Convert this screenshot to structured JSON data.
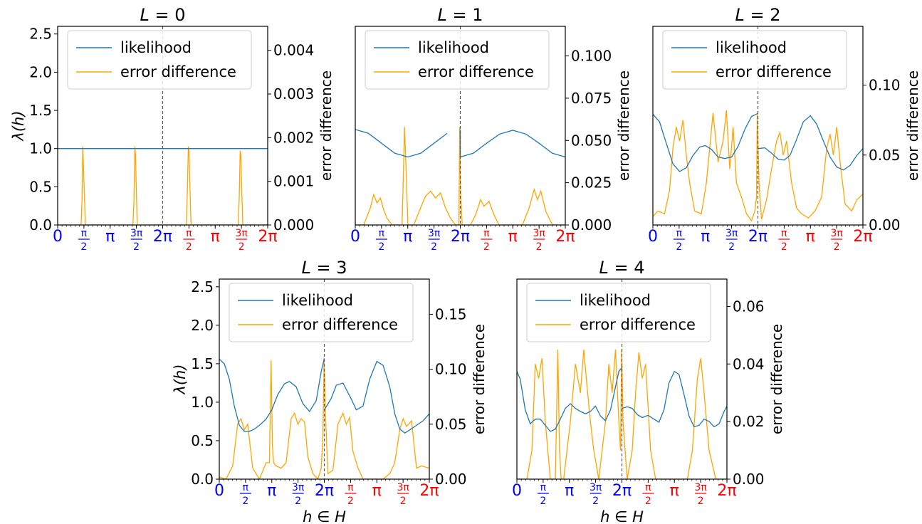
{
  "colors": {
    "likelihood": "#1f77b4",
    "error": "#ffa500",
    "first_half_ticks": "#0000ff",
    "second_half_ticks": "#ff0000",
    "divider": "#555555"
  },
  "x_tick_labels": {
    "zero": "0",
    "half_pi": "π/2",
    "pi": "π",
    "three_half_pi": "3π/2",
    "two_pi": "2π"
  },
  "chart_data": [
    {
      "type": "line",
      "title": "L = 0",
      "ylabel_left": "λ(h)",
      "ylabel_right": "error difference",
      "xlabel": "",
      "ylim_left": [
        0,
        2.6
      ],
      "yticks_left": [
        "0.0",
        "0.5",
        "1.0",
        "1.5",
        "2.0",
        "2.5"
      ],
      "ylim_right": [
        0,
        0.00455
      ],
      "yticks_right": [
        "0.000",
        "0.001",
        "0.002",
        "0.003",
        "0.004"
      ],
      "legend": [
        "likelihood",
        "error difference"
      ],
      "legend_position": "top-left",
      "x_range": [
        0,
        12.566
      ],
      "likelihood": {
        "x": [
          0,
          1.571,
          3.142,
          4.712,
          6.283,
          7.854,
          9.425,
          10.996,
          12.566
        ],
        "y": [
          1.0,
          1.0,
          1.0,
          1.0,
          1.0,
          1.0,
          1.0,
          1.0,
          1.0
        ]
      },
      "error_difference": {
        "x": [
          0,
          1.4,
          1.46,
          1.5,
          1.54,
          1.6,
          1.66,
          1.7,
          4.5,
          4.56,
          4.62,
          4.66,
          4.7,
          4.76,
          4.8,
          7.7,
          7.76,
          7.82,
          7.86,
          7.92,
          7.98,
          8.02,
          10.8,
          10.86,
          10.92,
          10.96,
          11.02,
          11.08,
          11.12,
          12.566
        ],
        "y": [
          0,
          0,
          0.0006,
          0.0018,
          0.0014,
          0.0007,
          0,
          0,
          0,
          0.0005,
          0.0018,
          0.0016,
          0.0009,
          0,
          0,
          0,
          0.0008,
          0.0018,
          0.0017,
          0.0008,
          0,
          0,
          0,
          0.0006,
          0.0017,
          0.0016,
          0.0007,
          0,
          0,
          0
        ]
      }
    },
    {
      "type": "line",
      "title": "L = 1",
      "ylabel_left": "",
      "ylabel_right": "error difference",
      "xlabel": "",
      "ylim_left": [
        0,
        2.6
      ],
      "yticks_left": [],
      "ylim_right": [
        0,
        0.1175
      ],
      "yticks_right": [
        "0.000",
        "0.025",
        "0.050",
        "0.075",
        "0.100"
      ],
      "legend": [
        "likelihood",
        "error difference"
      ],
      "legend_position": "top-left",
      "x_range": [
        0,
        12.566
      ],
      "likelihood": {
        "x": [
          0,
          0.785,
          1.571,
          2.356,
          3.142,
          3.927,
          4.712,
          5.498,
          6.283,
          6.284,
          7.069,
          7.854,
          8.639,
          9.425,
          10.21,
          10.996,
          11.781,
          12.566
        ],
        "y": [
          1.25,
          1.2,
          1.07,
          0.94,
          0.89,
          0.94,
          1.07,
          1.2,
          1.25,
          0.89,
          0.94,
          1.07,
          1.19,
          1.24,
          1.19,
          1.07,
          0.94,
          0.89
        ],
        "breaks": [
          8
        ]
      },
      "error_difference": {
        "x": [
          0,
          0.5,
          0.9,
          1.1,
          1.3,
          1.5,
          1.7,
          1.9,
          2.2,
          2.8,
          2.95,
          3.05,
          3.15,
          3.3,
          3.5,
          3.9,
          4.2,
          4.5,
          4.8,
          5.1,
          5.4,
          5.7,
          6.0,
          6.2,
          6.25,
          6.3,
          6.4,
          6.6,
          6.9,
          7.2,
          7.5,
          7.7,
          8.0,
          8.3,
          8.6,
          9.0,
          9.5,
          10.0,
          10.4,
          10.7,
          10.9,
          11.1,
          11.4,
          11.8,
          12.566
        ],
        "y": [
          0,
          0,
          0.01,
          0.018,
          0.013,
          0.016,
          0.009,
          0.004,
          0,
          0,
          0.058,
          0.03,
          0,
          0,
          0,
          0.01,
          0.017,
          0.02,
          0.016,
          0.019,
          0.01,
          0.004,
          0,
          0,
          0.058,
          0.02,
          0,
          0,
          0,
          0.006,
          0.015,
          0.011,
          0.014,
          0.006,
          0,
          0,
          0,
          0,
          0.01,
          0.021,
          0.015,
          0.02,
          0.008,
          0,
          0
        ]
      }
    },
    {
      "type": "line",
      "title": "L = 2",
      "ylabel_left": "",
      "ylabel_right": "error difference",
      "xlabel": "",
      "ylim_left": [
        0,
        2.6
      ],
      "yticks_left": [],
      "ylim_right": [
        0,
        0.142
      ],
      "yticks_right": [
        "0.00",
        "0.05",
        "0.10"
      ],
      "legend": [
        "likelihood",
        "error difference"
      ],
      "legend_position": "top-left",
      "x_range": [
        0,
        12.566
      ],
      "likelihood": {
        "x": [
          0,
          0.4,
          0.8,
          1.2,
          1.6,
          2.0,
          2.4,
          2.8,
          3.142,
          3.5,
          3.9,
          4.3,
          4.712,
          5.1,
          5.5,
          5.9,
          6.283,
          6.284,
          6.7,
          7.1,
          7.5,
          7.854,
          8.2,
          8.6,
          9.0,
          9.425,
          9.8,
          10.2,
          10.6,
          10.996,
          11.4,
          11.8,
          12.2,
          12.566
        ],
        "y": [
          1.45,
          1.35,
          1.07,
          0.8,
          0.7,
          0.75,
          0.91,
          1.02,
          1.04,
          0.99,
          0.89,
          0.87,
          0.89,
          1.03,
          1.25,
          1.42,
          1.46,
          1.0,
          1.01,
          0.94,
          0.86,
          0.85,
          0.91,
          1.12,
          1.35,
          1.43,
          1.32,
          1.1,
          0.89,
          0.76,
          0.72,
          0.78,
          0.91,
          1.0
        ],
        "breaks": [
          17
        ]
      },
      "error_difference": {
        "x": [
          0,
          0.3,
          0.7,
          1.0,
          1.2,
          1.4,
          1.6,
          1.8,
          2.0,
          2.2,
          2.5,
          2.9,
          3.2,
          3.6,
          3.9,
          4.2,
          4.4,
          4.6,
          4.8,
          5.0,
          5.3,
          5.6,
          5.9,
          6.1,
          6.2,
          6.25,
          6.35,
          6.5,
          6.8,
          7.1,
          7.4,
          7.6,
          7.8,
          8.0,
          8.3,
          8.6,
          8.9,
          9.3,
          9.7,
          10.1,
          10.4,
          10.6,
          10.8,
          11.0,
          11.2,
          11.5,
          11.9,
          12.2,
          12.566
        ],
        "y": [
          0.006,
          0.01,
          0.008,
          0.025,
          0.055,
          0.07,
          0.06,
          0.075,
          0.05,
          0.03,
          0.01,
          0.008,
          0.03,
          0.08,
          0.045,
          0.06,
          0.082,
          0.04,
          0.07,
          0.03,
          0.02,
          0.008,
          0.003,
          0.01,
          0.02,
          0.08,
          0.03,
          0.004,
          0.018,
          0.04,
          0.06,
          0.066,
          0.05,
          0.06,
          0.03,
          0.012,
          0.008,
          0.005,
          0.01,
          0.02,
          0.055,
          0.065,
          0.05,
          0.07,
          0.045,
          0.015,
          0.01,
          0.018,
          0.022
        ]
      }
    },
    {
      "type": "line",
      "title": "L = 3",
      "ylabel_left": "λ(h)",
      "ylabel_right": "error difference",
      "xlabel": "h ∈ H",
      "ylim_left": [
        0,
        2.6
      ],
      "yticks_left": [
        "0.0",
        "0.5",
        "1.0",
        "1.5",
        "2.0",
        "2.5"
      ],
      "ylim_right": [
        0,
        0.182
      ],
      "yticks_right": [
        "0.00",
        "0.05",
        "0.10",
        "0.15"
      ],
      "legend": [
        "likelihood",
        "error difference"
      ],
      "legend_position": "top-left",
      "x_range": [
        0,
        12.566
      ],
      "likelihood": {
        "x": [
          0,
          0.3,
          0.6,
          0.9,
          1.2,
          1.5,
          1.8,
          2.1,
          2.4,
          2.8,
          3.142,
          3.5,
          3.9,
          4.2,
          4.6,
          5.0,
          5.4,
          5.8,
          6.1,
          6.283,
          6.284,
          6.7,
          7.0,
          7.4,
          7.854,
          8.2,
          8.6,
          9.0,
          9.425,
          9.8,
          10.2,
          10.5,
          10.8,
          11.1,
          11.4,
          11.8,
          12.2,
          12.566
        ],
        "y": [
          1.56,
          1.5,
          1.3,
          0.95,
          0.7,
          0.62,
          0.62,
          0.65,
          0.7,
          0.78,
          0.9,
          1.1,
          1.24,
          1.27,
          1.2,
          0.98,
          0.88,
          1.02,
          1.4,
          1.57,
          0.9,
          1.05,
          1.22,
          1.25,
          1.06,
          0.9,
          0.95,
          1.3,
          1.53,
          1.48,
          1.2,
          0.85,
          0.65,
          0.6,
          0.64,
          0.7,
          0.76,
          0.85
        ],
        "breaks": [
          20
        ]
      },
      "error_difference": {
        "x": [
          0,
          0.4,
          0.8,
          1.1,
          1.3,
          1.5,
          1.7,
          2.0,
          2.4,
          2.8,
          3.0,
          3.1,
          3.18,
          3.25,
          3.4,
          3.7,
          4.0,
          4.3,
          4.5,
          4.7,
          4.9,
          5.1,
          5.3,
          5.6,
          5.9,
          6.1,
          6.2,
          6.27,
          6.35,
          6.5,
          6.8,
          7.1,
          7.4,
          7.6,
          7.8,
          8.0,
          8.3,
          8.6,
          9.0,
          9.4,
          9.8,
          10.2,
          10.5,
          10.8,
          11.0,
          11.2,
          11.5,
          11.8,
          12.1,
          12.566
        ],
        "y": [
          0.002,
          0,
          0.012,
          0.05,
          0.055,
          0.045,
          0.05,
          0.01,
          0,
          0.015,
          0.015,
          0.108,
          0.03,
          0.015,
          0.012,
          0.01,
          0.015,
          0.055,
          0.06,
          0.05,
          0.055,
          0.052,
          0.02,
          0.005,
          0,
          0.01,
          0.04,
          0.108,
          0.06,
          0.005,
          0.008,
          0.05,
          0.06,
          0.05,
          0.056,
          0.025,
          0.01,
          0,
          0,
          0,
          0,
          0.005,
          0.015,
          0.045,
          0.055,
          0.048,
          0.053,
          0.01,
          0.012,
          0.01
        ]
      }
    },
    {
      "type": "line",
      "title": "L = 4",
      "ylabel_left": "",
      "ylabel_right": "error difference",
      "xlabel": "h ∈ H",
      "ylim_left": [
        0,
        2.6
      ],
      "yticks_left": [],
      "ylim_right": [
        0,
        0.0695
      ],
      "yticks_right": [
        "0.00",
        "0.02",
        "0.04",
        "0.06"
      ],
      "legend": [
        "likelihood",
        "error difference"
      ],
      "legend_position": "top-left",
      "x_range": [
        0,
        12.566
      ],
      "likelihood": {
        "x": [
          0,
          0.2,
          0.5,
          0.8,
          1.1,
          1.4,
          1.7,
          2.0,
          2.3,
          2.6,
          2.9,
          3.2,
          3.5,
          3.8,
          4.1,
          4.4,
          4.7,
          5.0,
          5.3,
          5.6,
          5.9,
          6.1,
          6.283,
          6.284,
          6.6,
          6.9,
          7.2,
          7.5,
          7.854,
          8.2,
          8.5,
          8.8,
          9.1,
          9.425,
          9.7,
          10.0,
          10.3,
          10.6,
          10.9,
          11.2,
          11.5,
          11.8,
          12.1,
          12.4,
          12.566
        ],
        "y": [
          1.4,
          1.3,
          0.9,
          0.72,
          0.78,
          0.78,
          0.7,
          0.62,
          0.65,
          0.78,
          0.92,
          0.98,
          0.92,
          0.88,
          0.85,
          0.88,
          0.95,
          0.82,
          0.76,
          0.9,
          1.2,
          1.4,
          1.45,
          0.92,
          0.94,
          0.92,
          0.84,
          0.8,
          0.83,
          0.78,
          0.74,
          0.9,
          1.25,
          1.4,
          1.36,
          1.1,
          0.82,
          0.68,
          0.7,
          0.78,
          0.75,
          0.68,
          0.72,
          0.88,
          0.95
        ],
        "breaks": [
          23
        ]
      },
      "error_difference": {
        "x": [
          0,
          0.6,
          0.9,
          1.1,
          1.3,
          1.5,
          1.7,
          2.0,
          2.3,
          2.45,
          2.55,
          2.65,
          2.8,
          3.2,
          3.5,
          3.8,
          4.0,
          4.2,
          4.4,
          4.6,
          4.9,
          5.3,
          5.5,
          5.7,
          5.9,
          6.1,
          6.2,
          6.27,
          6.35,
          6.6,
          6.9,
          7.1,
          7.3,
          7.5,
          7.7,
          8.0,
          8.3,
          8.6,
          8.9,
          9.2,
          9.5,
          9.8,
          10.2,
          10.5,
          10.8,
          11.0,
          11.2,
          11.5,
          11.9,
          12.2,
          12.566
        ],
        "y": [
          0,
          0,
          0.01,
          0.04,
          0.035,
          0.042,
          0.02,
          0,
          0,
          0.045,
          0.01,
          0,
          0,
          0.02,
          0.04,
          0.03,
          0.045,
          0.032,
          0.02,
          0.01,
          0,
          0.02,
          0.04,
          0.03,
          0.045,
          0.02,
          0.01,
          0.045,
          0.02,
          0,
          0.01,
          0.03,
          0.044,
          0.035,
          0.04,
          0.01,
          0,
          0,
          0,
          0,
          0,
          0,
          0,
          0.01,
          0.035,
          0.042,
          0.03,
          0.01,
          0,
          0,
          0
        ]
      }
    }
  ]
}
